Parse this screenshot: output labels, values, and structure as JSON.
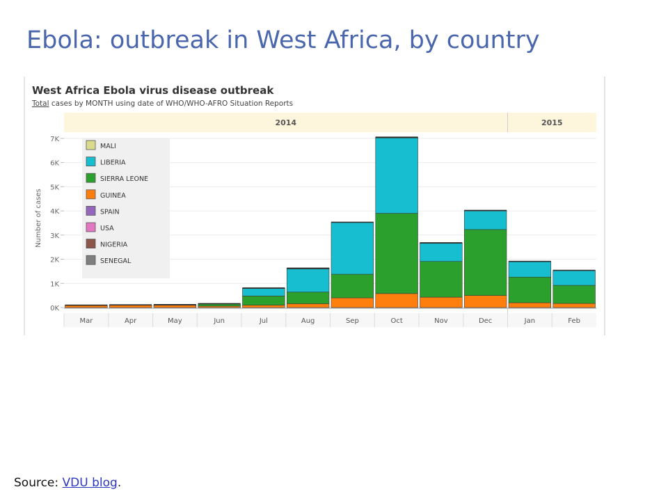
{
  "slide": {
    "title": "Ebola: outbreak in West Africa, by country",
    "source_prefix": "Source:",
    "source_link": "VDU blog",
    "source_suffix": "."
  },
  "chart_data": {
    "type": "bar",
    "stacked": true,
    "title": "West Africa Ebola virus disease outbreak",
    "subtitle_underlined": "Total",
    "subtitle_rest": " cases by MONTH using date of WHO/WHO-AFRO Situation Reports",
    "ylabel": "Number of cases",
    "ylim": [
      0,
      7400
    ],
    "yticks": [
      0,
      1000,
      2000,
      3000,
      4000,
      5000,
      6000,
      7000
    ],
    "ytick_labels": [
      "0K",
      "1K",
      "2K",
      "3K",
      "4K",
      "5K",
      "6K",
      "7K"
    ],
    "grid": true,
    "legend_position": "top-left",
    "year_groups": [
      {
        "label": "2014",
        "span": 10
      },
      {
        "label": "2015",
        "span": 2
      }
    ],
    "categories": [
      "Mar",
      "Apr",
      "May",
      "Jun",
      "Jul",
      "Aug",
      "Sep",
      "Oct",
      "Nov",
      "Dec",
      "Jan",
      "Feb"
    ],
    "series": [
      {
        "name": "GUINEA",
        "color": "#ff7f0e",
        "values": [
          100,
          110,
          100,
          60,
          100,
          160,
          400,
          580,
          430,
          500,
          200,
          170
        ]
      },
      {
        "name": "SIERRA LEONE",
        "color": "#2ca02c",
        "values": [
          0,
          0,
          20,
          100,
          380,
          480,
          980,
          3320,
          1480,
          2730,
          1060,
          750
        ]
      },
      {
        "name": "LIBERIA",
        "color": "#17becf",
        "values": [
          0,
          0,
          0,
          0,
          320,
          970,
          2150,
          3130,
          760,
          780,
          650,
          620
        ]
      },
      {
        "name": "NIGERIA",
        "color": "#8c564b",
        "values": [
          0,
          0,
          0,
          0,
          10,
          10,
          0,
          0,
          0,
          0,
          0,
          0
        ]
      },
      {
        "name": "SENEGAL",
        "color": "#7f7f7f",
        "values": [
          0,
          0,
          0,
          0,
          0,
          10,
          0,
          0,
          0,
          0,
          0,
          0
        ]
      },
      {
        "name": "USA",
        "color": "#e377c2",
        "values": [
          0,
          0,
          0,
          0,
          0,
          0,
          0,
          10,
          0,
          0,
          0,
          0
        ]
      },
      {
        "name": "SPAIN",
        "color": "#9467bd",
        "values": [
          0,
          0,
          0,
          0,
          0,
          0,
          0,
          10,
          0,
          0,
          0,
          0
        ]
      },
      {
        "name": "MALI",
        "color": "#dbdb8d",
        "values": [
          0,
          0,
          0,
          0,
          0,
          0,
          0,
          0,
          10,
          10,
          0,
          0
        ]
      }
    ],
    "legend_order": [
      "MALI",
      "LIBERIA",
      "SIERRA LEONE",
      "GUINEA",
      "SPAIN",
      "USA",
      "NIGERIA",
      "SENEGAL"
    ],
    "legend_colors": {
      "MALI": "#dbdb8d",
      "LIBERIA": "#17becf",
      "SIERRA LEONE": "#2ca02c",
      "GUINEA": "#ff7f0e",
      "SPAIN": "#9467bd",
      "USA": "#e377c2",
      "NIGERIA": "#8c564b",
      "SENEGAL": "#7f7f7f"
    }
  }
}
